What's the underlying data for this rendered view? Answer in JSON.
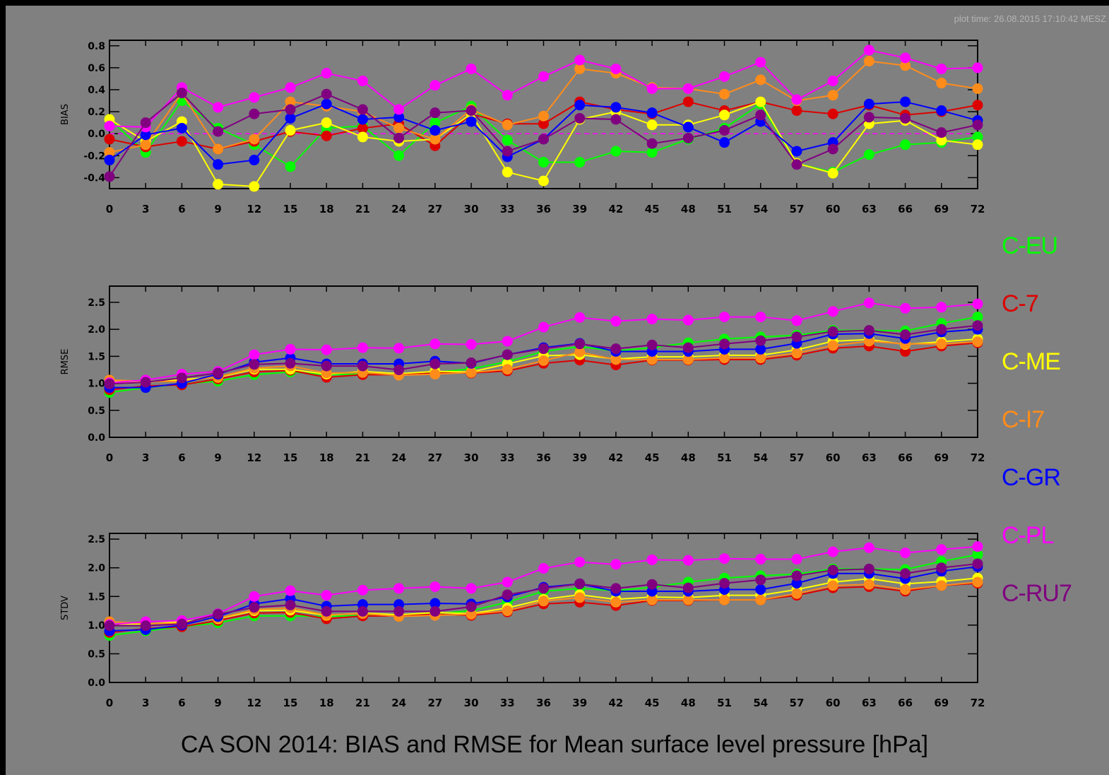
{
  "plot_time": "plot time: 26.08.2015 17:10:42 MESZ",
  "title": "CA SON 2014: BIAS and RMSE for Mean surface level pressure [hPa]",
  "colors": {
    "background": "#808080",
    "frame": "#000000",
    "zero_line": "#ff00ff"
  },
  "chart_data": [
    {
      "type": "line",
      "ylabel": "BIAS",
      "ylim": [
        -0.5,
        0.85
      ],
      "yticks": [
        "-0.4",
        "-0.2",
        "0.0",
        "0.2",
        "0.4",
        "0.6",
        "0.8"
      ],
      "zero_line": true,
      "x": [
        0,
        3,
        6,
        9,
        12,
        15,
        18,
        21,
        24,
        27,
        30,
        33,
        36,
        39,
        42,
        45,
        48,
        51,
        54,
        57,
        60,
        63,
        66,
        69,
        72
      ],
      "series": [
        {
          "name": "C-EU",
          "color": "#00ff00",
          "values": [
            0.13,
            -0.17,
            0.3,
            0.05,
            -0.1,
            -0.3,
            0.05,
            0.07,
            -0.2,
            0.1,
            0.25,
            -0.06,
            -0.26,
            -0.26,
            -0.16,
            -0.17,
            -0.05,
            0.05,
            0.27,
            -0.27,
            -0.35,
            -0.19,
            -0.1,
            -0.08,
            -0.03
          ]
        },
        {
          "name": "C-7",
          "color": "#dd0000",
          "values": [
            -0.05,
            -0.12,
            -0.07,
            -0.14,
            -0.07,
            0.02,
            -0.02,
            0.05,
            0.09,
            -0.11,
            0.18,
            0.09,
            0.09,
            0.29,
            0.22,
            0.18,
            0.29,
            0.21,
            0.29,
            0.21,
            0.18,
            0.26,
            0.17,
            0.2,
            0.26
          ]
        },
        {
          "name": "C-ME",
          "color": "#ffff00",
          "values": [
            0.13,
            -0.07,
            0.11,
            -0.46,
            -0.48,
            0.03,
            0.1,
            -0.03,
            -0.07,
            -0.05,
            0.18,
            -0.35,
            -0.43,
            0.13,
            0.2,
            0.08,
            0.08,
            0.17,
            0.29,
            -0.27,
            -0.36,
            0.09,
            0.12,
            -0.06,
            -0.1
          ]
        },
        {
          "name": "C-I7",
          "color": "#ff8c1a",
          "values": [
            -0.17,
            -0.1,
            0.37,
            -0.14,
            -0.05,
            0.29,
            0.25,
            0.2,
            0.05,
            -0.05,
            0.22,
            0.08,
            0.16,
            0.59,
            0.55,
            0.42,
            0.41,
            0.36,
            0.49,
            0.3,
            0.35,
            0.66,
            0.62,
            0.46,
            0.41
          ]
        },
        {
          "name": "C-GR",
          "color": "#0000ff",
          "values": [
            -0.24,
            -0.01,
            0.05,
            -0.28,
            -0.24,
            0.14,
            0.27,
            0.13,
            0.15,
            0.03,
            0.11,
            -0.21,
            -0.05,
            0.26,
            0.24,
            0.19,
            0.06,
            -0.08,
            0.11,
            -0.16,
            -0.08,
            0.27,
            0.29,
            0.21,
            0.12
          ]
        },
        {
          "name": "C-PL",
          "color": "#ff00ff",
          "values": [
            0.07,
            0.06,
            0.42,
            0.24,
            0.33,
            0.42,
            0.55,
            0.48,
            0.22,
            0.44,
            0.59,
            0.35,
            0.52,
            0.67,
            0.59,
            0.41,
            0.41,
            0.52,
            0.65,
            0.31,
            0.48,
            0.76,
            0.69,
            0.59,
            0.6
          ]
        },
        {
          "name": "C-RU7",
          "color": "#800080",
          "values": [
            -0.39,
            0.1,
            0.37,
            0.02,
            0.18,
            0.22,
            0.36,
            0.22,
            -0.04,
            0.19,
            0.21,
            -0.16,
            -0.05,
            0.14,
            0.13,
            -0.09,
            -0.04,
            0.03,
            0.17,
            -0.28,
            -0.14,
            0.15,
            0.14,
            0.01,
            0.08
          ]
        }
      ]
    },
    {
      "type": "line",
      "ylabel": "RMSE",
      "ylim": [
        0.0,
        2.8
      ],
      "yticks": [
        "0.0",
        "0.5",
        "1.0",
        "1.5",
        "2.0",
        "2.5"
      ],
      "x": [
        0,
        3,
        6,
        9,
        12,
        15,
        18,
        21,
        24,
        27,
        30,
        33,
        36,
        39,
        42,
        45,
        48,
        51,
        54,
        57,
        60,
        63,
        66,
        69,
        72
      ],
      "series": [
        {
          "name": "C-EU",
          "color": "#00ff00",
          "values": [
            0.83,
            0.92,
            0.99,
            1.04,
            1.16,
            1.21,
            1.16,
            1.17,
            1.18,
            1.2,
            1.27,
            1.4,
            1.59,
            1.68,
            1.6,
            1.66,
            1.75,
            1.82,
            1.86,
            1.89,
            1.98,
            1.98,
            1.97,
            2.11,
            2.23
          ]
        },
        {
          "name": "C-7",
          "color": "#dd0000",
          "values": [
            0.88,
            0.95,
            0.97,
            1.08,
            1.21,
            1.24,
            1.11,
            1.16,
            1.16,
            1.19,
            1.19,
            1.23,
            1.37,
            1.43,
            1.34,
            1.43,
            1.43,
            1.44,
            1.44,
            1.52,
            1.65,
            1.69,
            1.59,
            1.69,
            1.75
          ]
        },
        {
          "name": "C-ME",
          "color": "#ffff00",
          "values": [
            1.03,
            1.02,
            1.07,
            1.11,
            1.26,
            1.26,
            1.17,
            1.22,
            1.18,
            1.22,
            1.21,
            1.36,
            1.51,
            1.53,
            1.45,
            1.49,
            1.49,
            1.52,
            1.52,
            1.62,
            1.78,
            1.81,
            1.72,
            1.77,
            1.82
          ]
        },
        {
          "name": "C-I7",
          "color": "#ff8c1a",
          "values": [
            1.06,
            1.04,
            1.03,
            1.12,
            1.28,
            1.32,
            1.19,
            1.2,
            1.15,
            1.17,
            1.2,
            1.26,
            1.42,
            1.58,
            1.44,
            1.44,
            1.44,
            1.47,
            1.47,
            1.56,
            1.7,
            1.78,
            1.73,
            1.73,
            1.77
          ]
        },
        {
          "name": "C-GR",
          "color": "#0000ff",
          "values": [
            0.92,
            0.92,
            1.0,
            1.17,
            1.39,
            1.47,
            1.36,
            1.36,
            1.36,
            1.41,
            1.37,
            1.53,
            1.66,
            1.74,
            1.59,
            1.59,
            1.59,
            1.63,
            1.63,
            1.74,
            1.91,
            1.92,
            1.83,
            1.95,
            2.0
          ]
        },
        {
          "name": "C-PL",
          "color": "#ff00ff",
          "values": [
            1.01,
            1.06,
            1.17,
            1.22,
            1.53,
            1.63,
            1.62,
            1.66,
            1.65,
            1.73,
            1.72,
            1.78,
            2.04,
            2.22,
            2.15,
            2.19,
            2.17,
            2.23,
            2.23,
            2.16,
            2.33,
            2.49,
            2.39,
            2.41,
            2.47
          ]
        },
        {
          "name": "C-RU7",
          "color": "#800080",
          "values": [
            0.99,
            1.02,
            1.1,
            1.19,
            1.35,
            1.37,
            1.32,
            1.32,
            1.25,
            1.36,
            1.38,
            1.53,
            1.64,
            1.73,
            1.64,
            1.71,
            1.66,
            1.73,
            1.79,
            1.86,
            1.96,
            1.98,
            1.9,
            2.0,
            2.07
          ]
        }
      ]
    },
    {
      "type": "line",
      "ylabel": "STDV",
      "ylim": [
        0.0,
        2.6
      ],
      "yticks": [
        "0.0",
        "0.5",
        "1.0",
        "1.5",
        "2.0",
        "2.5"
      ],
      "x": [
        0,
        3,
        6,
        9,
        12,
        15,
        18,
        21,
        24,
        27,
        30,
        33,
        36,
        39,
        42,
        45,
        48,
        51,
        54,
        57,
        60,
        63,
        66,
        69,
        72
      ],
      "series": [
        {
          "name": "C-EU",
          "color": "#00ff00",
          "values": [
            0.82,
            0.9,
            0.97,
            1.04,
            1.16,
            1.16,
            1.15,
            1.17,
            1.18,
            1.2,
            1.25,
            1.4,
            1.59,
            1.64,
            1.6,
            1.66,
            1.75,
            1.82,
            1.86,
            1.89,
            1.98,
            1.98,
            1.97,
            2.11,
            2.23
          ]
        },
        {
          "name": "C-7",
          "color": "#dd0000",
          "values": [
            0.87,
            0.94,
            0.97,
            1.08,
            1.21,
            1.22,
            1.11,
            1.16,
            1.16,
            1.19,
            1.17,
            1.23,
            1.37,
            1.4,
            1.34,
            1.43,
            1.43,
            1.44,
            1.44,
            1.52,
            1.65,
            1.67,
            1.59,
            1.69,
            1.73
          ]
        },
        {
          "name": "C-ME",
          "color": "#ffff00",
          "values": [
            1.02,
            1.02,
            1.06,
            1.11,
            1.25,
            1.26,
            1.17,
            1.21,
            1.18,
            1.22,
            1.2,
            1.3,
            1.45,
            1.53,
            1.45,
            1.49,
            1.48,
            1.52,
            1.52,
            1.62,
            1.75,
            1.81,
            1.72,
            1.76,
            1.82
          ]
        },
        {
          "name": "C-I7",
          "color": "#ff8c1a",
          "values": [
            1.06,
            1.03,
            1.03,
            1.12,
            1.27,
            1.3,
            1.18,
            1.2,
            1.15,
            1.17,
            1.19,
            1.25,
            1.42,
            1.48,
            1.4,
            1.44,
            1.44,
            1.44,
            1.44,
            1.55,
            1.69,
            1.71,
            1.62,
            1.69,
            1.75
          ]
        },
        {
          "name": "C-GR",
          "color": "#0000ff",
          "values": [
            0.9,
            0.92,
            1.0,
            1.15,
            1.37,
            1.46,
            1.33,
            1.36,
            1.36,
            1.38,
            1.37,
            1.49,
            1.66,
            1.72,
            1.59,
            1.59,
            1.59,
            1.62,
            1.62,
            1.73,
            1.9,
            1.9,
            1.81,
            1.94,
            2.02
          ]
        },
        {
          "name": "C-PL",
          "color": "#ff00ff",
          "values": [
            1.01,
            1.06,
            1.08,
            1.2,
            1.5,
            1.6,
            1.52,
            1.61,
            1.64,
            1.67,
            1.64,
            1.75,
            1.99,
            2.1,
            2.06,
            2.14,
            2.13,
            2.16,
            2.15,
            2.15,
            2.28,
            2.35,
            2.26,
            2.32,
            2.37
          ]
        },
        {
          "name": "C-RU7",
          "color": "#800080",
          "values": [
            0.99,
            0.99,
            1.02,
            1.19,
            1.31,
            1.35,
            1.24,
            1.24,
            1.24,
            1.24,
            1.32,
            1.53,
            1.64,
            1.72,
            1.64,
            1.71,
            1.65,
            1.73,
            1.79,
            1.86,
            1.96,
            1.98,
            1.9,
            2.0,
            2.07
          ]
        }
      ]
    }
  ]
}
